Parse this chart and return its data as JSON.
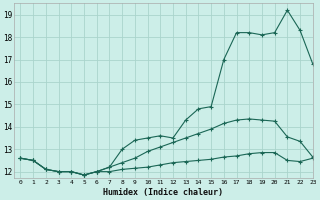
{
  "xlabel": "Humidex (Indice chaleur)",
  "bg_color": "#cceee8",
  "grid_color": "#aad4cc",
  "line_color": "#1a6655",
  "xlim": [
    -0.5,
    23
  ],
  "ylim": [
    11.7,
    19.5
  ],
  "xticks": [
    0,
    1,
    2,
    3,
    4,
    5,
    6,
    7,
    8,
    9,
    10,
    11,
    12,
    13,
    14,
    15,
    16,
    17,
    18,
    19,
    20,
    21,
    22,
    23
  ],
  "yticks": [
    12,
    13,
    14,
    15,
    16,
    17,
    18,
    19
  ],
  "line1_x": [
    0,
    1,
    2,
    3,
    4,
    5,
    6,
    7,
    8,
    9,
    10,
    11,
    12,
    13,
    14,
    15,
    16,
    17,
    18,
    19,
    20,
    21,
    22,
    23
  ],
  "line1_y": [
    12.6,
    12.5,
    12.1,
    12.0,
    12.0,
    11.85,
    12.0,
    12.2,
    13.0,
    13.4,
    13.5,
    13.6,
    13.5,
    14.3,
    14.8,
    14.9,
    17.0,
    18.2,
    18.2,
    18.1,
    18.2,
    19.2,
    18.3,
    16.8
  ],
  "line2_x": [
    0,
    1,
    2,
    3,
    4,
    5,
    6,
    7,
    8,
    9,
    10,
    11,
    12,
    13,
    14,
    15,
    16,
    17,
    18,
    19,
    20,
    21,
    22,
    23
  ],
  "line2_y": [
    12.6,
    12.5,
    12.1,
    12.0,
    12.0,
    11.85,
    12.0,
    12.2,
    12.4,
    12.6,
    12.9,
    13.1,
    13.3,
    13.5,
    13.7,
    13.9,
    14.15,
    14.3,
    14.35,
    14.3,
    14.25,
    13.55,
    13.35,
    12.65
  ],
  "line3_x": [
    0,
    1,
    2,
    3,
    4,
    5,
    6,
    7,
    8,
    9,
    10,
    11,
    12,
    13,
    14,
    15,
    16,
    17,
    18,
    19,
    20,
    21,
    22,
    23
  ],
  "line3_y": [
    12.6,
    12.5,
    12.1,
    12.0,
    12.0,
    11.85,
    12.0,
    12.0,
    12.1,
    12.15,
    12.2,
    12.3,
    12.4,
    12.45,
    12.5,
    12.55,
    12.65,
    12.7,
    12.8,
    12.85,
    12.85,
    12.5,
    12.45,
    12.6
  ]
}
